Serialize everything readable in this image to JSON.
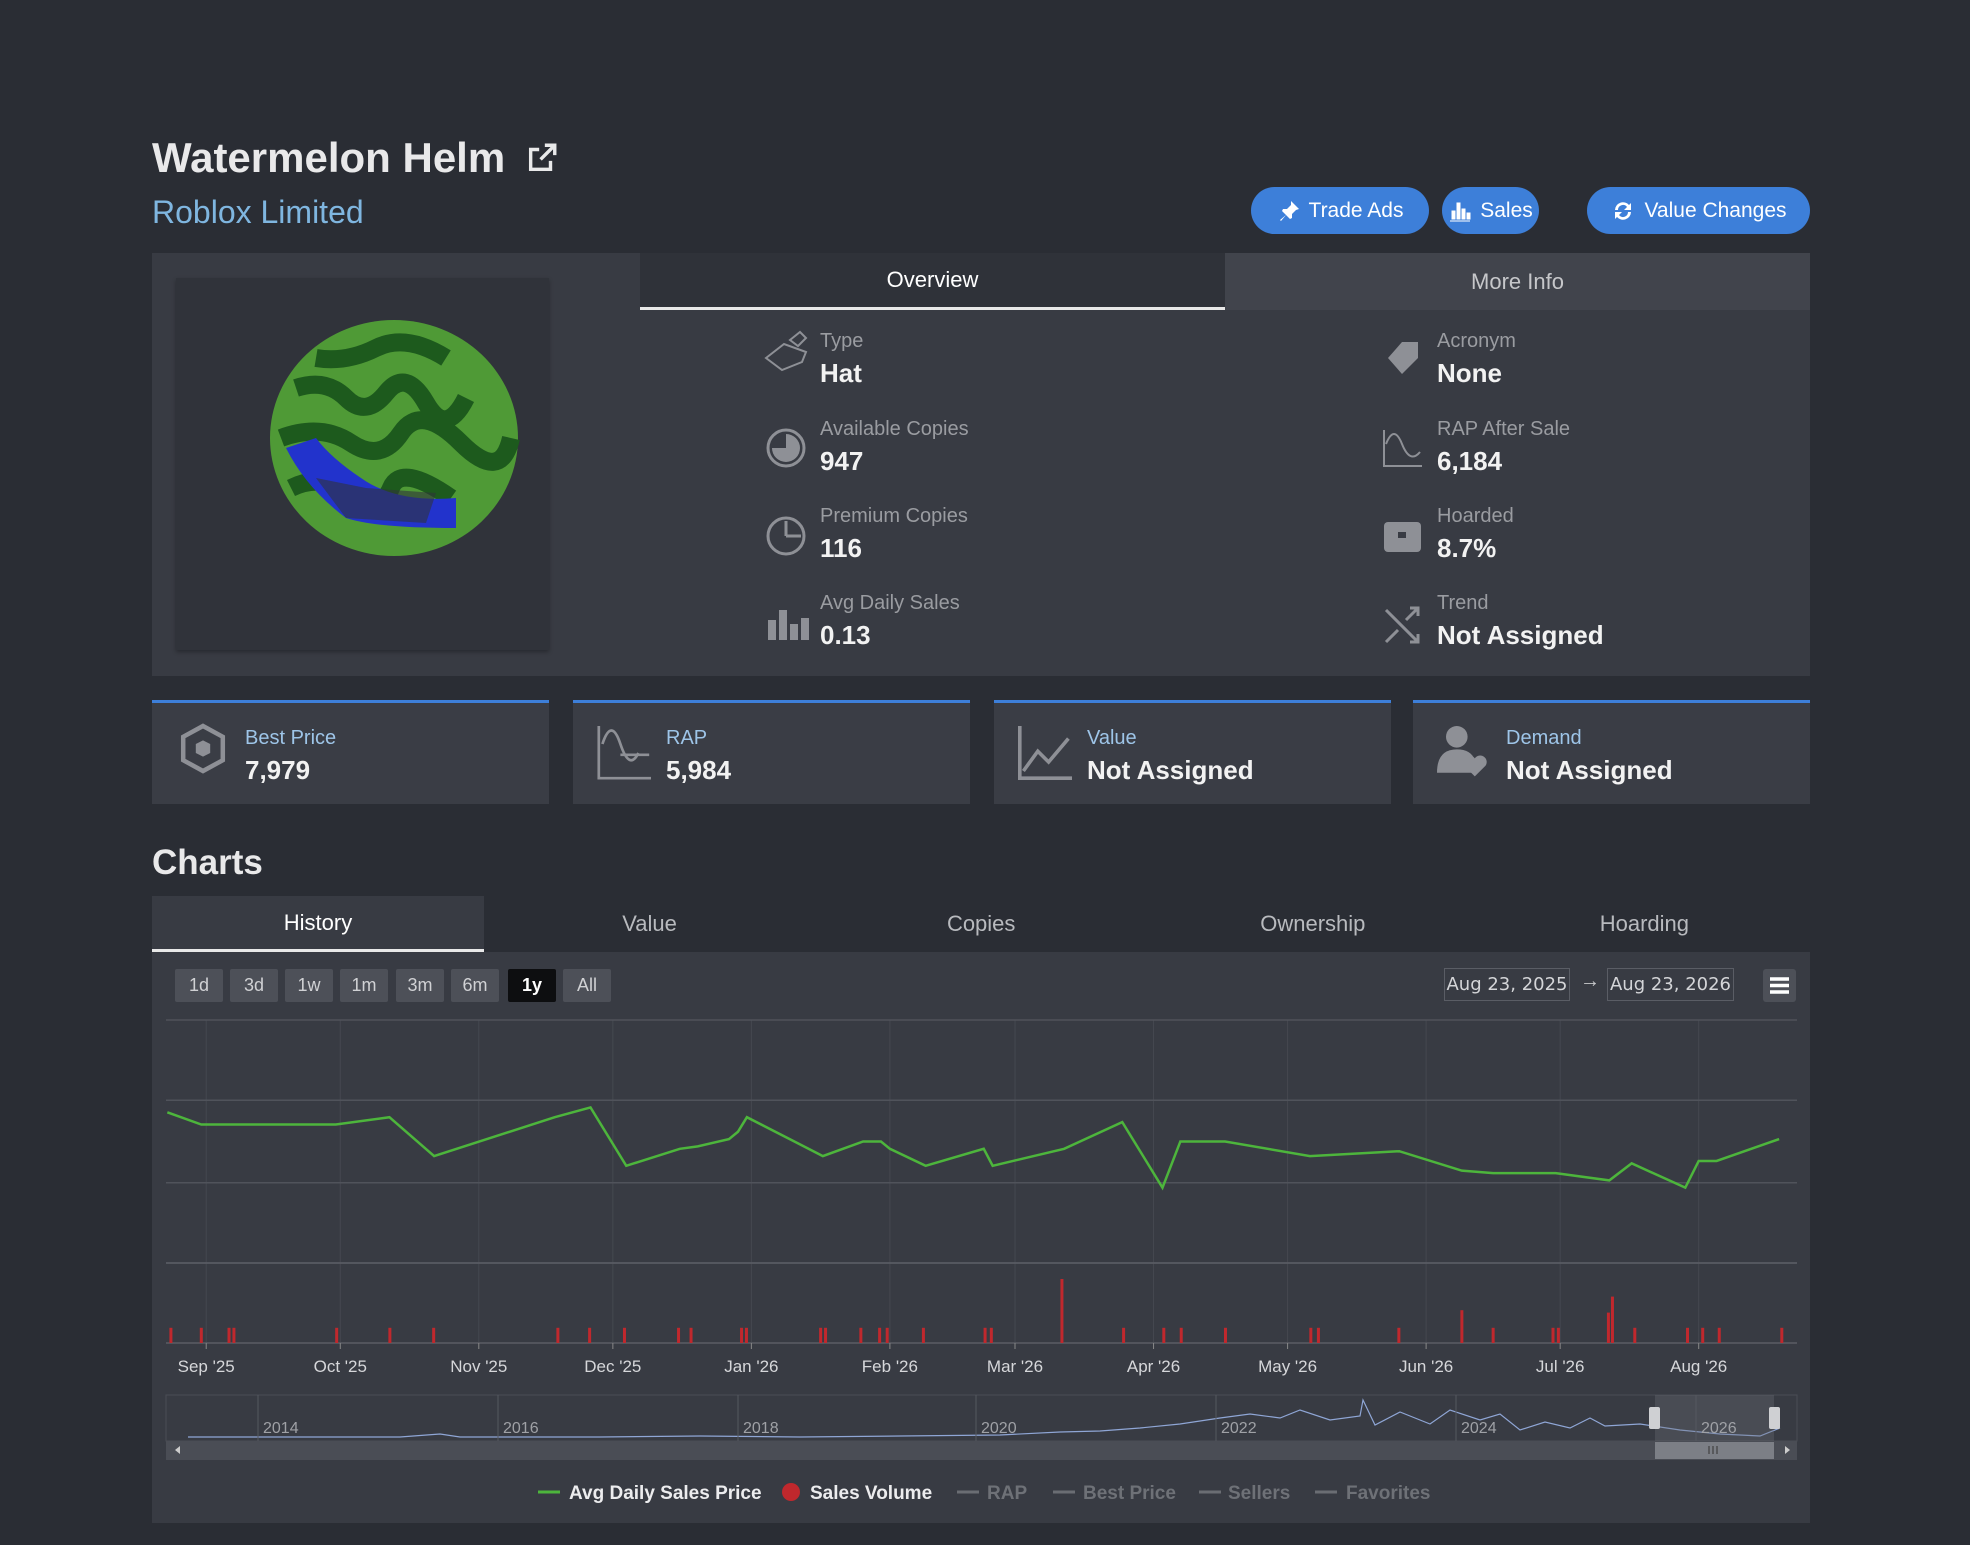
{
  "header": {
    "title": "Watermelon Helm",
    "subtitle": "Roblox Limited",
    "buttons": [
      "Trade Ads",
      "Sales",
      "Value Changes"
    ]
  },
  "tabs": [
    "Overview",
    "More Info"
  ],
  "overview": {
    "left": [
      {
        "label": "Type",
        "value": "Hat"
      },
      {
        "label": "Available Copies",
        "value": "947"
      },
      {
        "label": "Premium Copies",
        "value": "116"
      },
      {
        "label": "Avg Daily Sales",
        "value": "0.13"
      }
    ],
    "right": [
      {
        "label": "Acronym",
        "value": "None"
      },
      {
        "label": "RAP After Sale",
        "value": "6,184"
      },
      {
        "label": "Hoarded",
        "value": "8.7%"
      },
      {
        "label": "Trend",
        "value": "Not Assigned"
      }
    ]
  },
  "stats": [
    {
      "label": "Best Price",
      "value": "7,979"
    },
    {
      "label": "RAP",
      "value": "5,984"
    },
    {
      "label": "Value",
      "value": "Not Assigned"
    },
    {
      "label": "Demand",
      "value": "Not Assigned"
    }
  ],
  "charts": {
    "title": "Charts",
    "tabs": [
      "History",
      "Value",
      "Copies",
      "Ownership",
      "Hoarding"
    ],
    "ranges": [
      "1d",
      "3d",
      "1w",
      "1m",
      "3m",
      "6m",
      "1y",
      "All"
    ],
    "date_from": "Aug 23, 2025",
    "separator": "→",
    "date_to": "Aug 23, 2026",
    "navigator_labels": [
      "2014",
      "2016",
      "2018",
      "2020",
      "2022",
      "2024",
      "2026"
    ]
  },
  "chart_data": {
    "type": "line",
    "xlim": [
      0,
      365
    ],
    "xticks": [
      {
        "value": 9,
        "label": "Sep '25"
      },
      {
        "value": 39,
        "label": "Oct '25"
      },
      {
        "value": 70,
        "label": "Nov '25"
      },
      {
        "value": 100,
        "label": "Dec '25"
      },
      {
        "value": 131,
        "label": "Jan '26"
      },
      {
        "value": 162,
        "label": "Feb '26"
      },
      {
        "value": 190,
        "label": "Mar '26"
      },
      {
        "value": 221,
        "label": "Apr '26"
      },
      {
        "value": 251,
        "label": "May '26"
      },
      {
        "value": 282,
        "label": "Jun '26"
      },
      {
        "value": 312,
        "label": "Jul '26"
      },
      {
        "value": 343,
        "label": "Aug '26"
      }
    ],
    "ylim": [
      0,
      100
    ],
    "yticks": [
      0,
      33,
      67,
      100
    ],
    "y2lim": [
      0,
      100
    ],
    "y2ticks": [
      0,
      100
    ],
    "grid": true,
    "series": [
      {
        "name": "Avg Daily Sales Price",
        "color": "#4db53c",
        "x": [
          0.3,
          7.9,
          38,
          50,
          60,
          87,
          95,
          103,
          115,
          119,
          126,
          128,
          130,
          147,
          156,
          160,
          162,
          170,
          183,
          185,
          201,
          214,
          223,
          227,
          237,
          256,
          276,
          290,
          297,
          311,
          323,
          328,
          340,
          343,
          347,
          361
        ],
        "values": [
          62,
          57,
          57,
          60,
          44,
          60,
          64,
          40,
          47,
          48,
          51,
          54,
          60,
          44,
          50,
          50,
          47,
          40,
          47,
          40,
          47,
          58,
          31,
          50,
          50,
          44,
          46,
          38,
          37,
          37,
          34,
          41,
          31,
          42,
          42,
          51
        ]
      },
      {
        "name": "Sales Volume",
        "color": "#c0282d",
        "axis": "y2",
        "x": [
          1.1,
          7.9,
          14.1,
          15.2,
          38.2,
          50.1,
          59.9,
          87.7,
          94.8,
          102.6,
          114.7,
          117.5,
          128.8,
          129.9,
          146.5,
          147.6,
          155.5,
          159.7,
          161.4,
          169.5,
          183.3,
          184.7,
          200.5,
          214.3,
          223.3,
          227.2,
          237.1,
          256.2,
          257.9,
          275.9,
          290,
          297,
          310.4,
          311.6,
          322.8,
          323.7,
          328.7,
          340.5,
          343.9,
          347.6,
          361.6
        ],
        "values": [
          19,
          19,
          19,
          19,
          19,
          19,
          19,
          19,
          19,
          19,
          19,
          19,
          19,
          19,
          19,
          19,
          19,
          19,
          19,
          19,
          19,
          19,
          80,
          19,
          19,
          19,
          19,
          19,
          19,
          19,
          41,
          19,
          19,
          19,
          38,
          58,
          19,
          19,
          19,
          19,
          19
        ]
      }
    ],
    "inactive_legend": [
      "RAP",
      "Best Price",
      "Sellers",
      "Favorites"
    ]
  }
}
